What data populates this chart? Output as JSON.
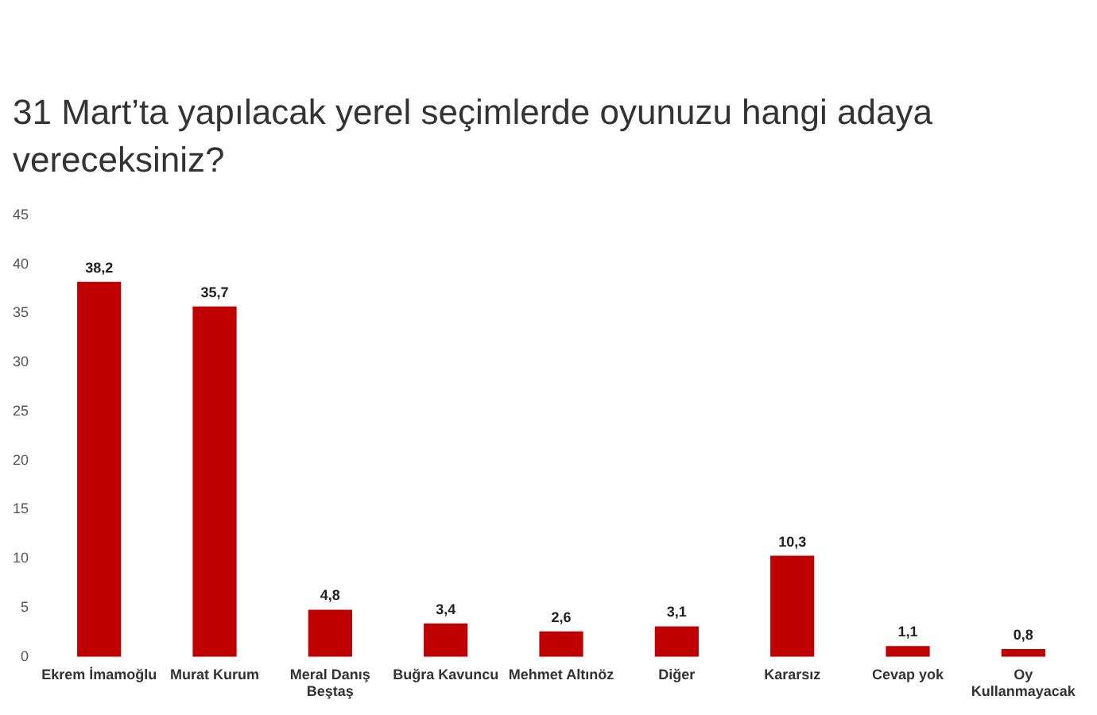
{
  "chart_data": {
    "type": "bar",
    "title": "31 Mart’ta yapılacak yerel seçimlerde oyunuzu hangi adaya vereceksiniz?",
    "categories": [
      "Ekrem İmamoğlu",
      "Murat Kurum",
      "Meral Danış Beştaş",
      "Buğra Kavuncu",
      "Mehmet Altınöz",
      "Diğer",
      "Kararsız",
      "Cevap yok",
      "Oy Kullanmayacak"
    ],
    "values": [
      38.2,
      35.7,
      4.8,
      3.4,
      2.6,
      3.1,
      10.3,
      1.1,
      0.8
    ],
    "value_labels": [
      "38,2",
      "35,7",
      "4,8",
      "3,4",
      "2,6",
      "3,1",
      "10,3",
      "1,1",
      "0,8"
    ],
    "color": "#c00000",
    "ylim": [
      0,
      45
    ],
    "yticks": [
      0,
      5,
      10,
      15,
      20,
      25,
      30,
      35,
      40,
      45
    ],
    "grid": false
  }
}
